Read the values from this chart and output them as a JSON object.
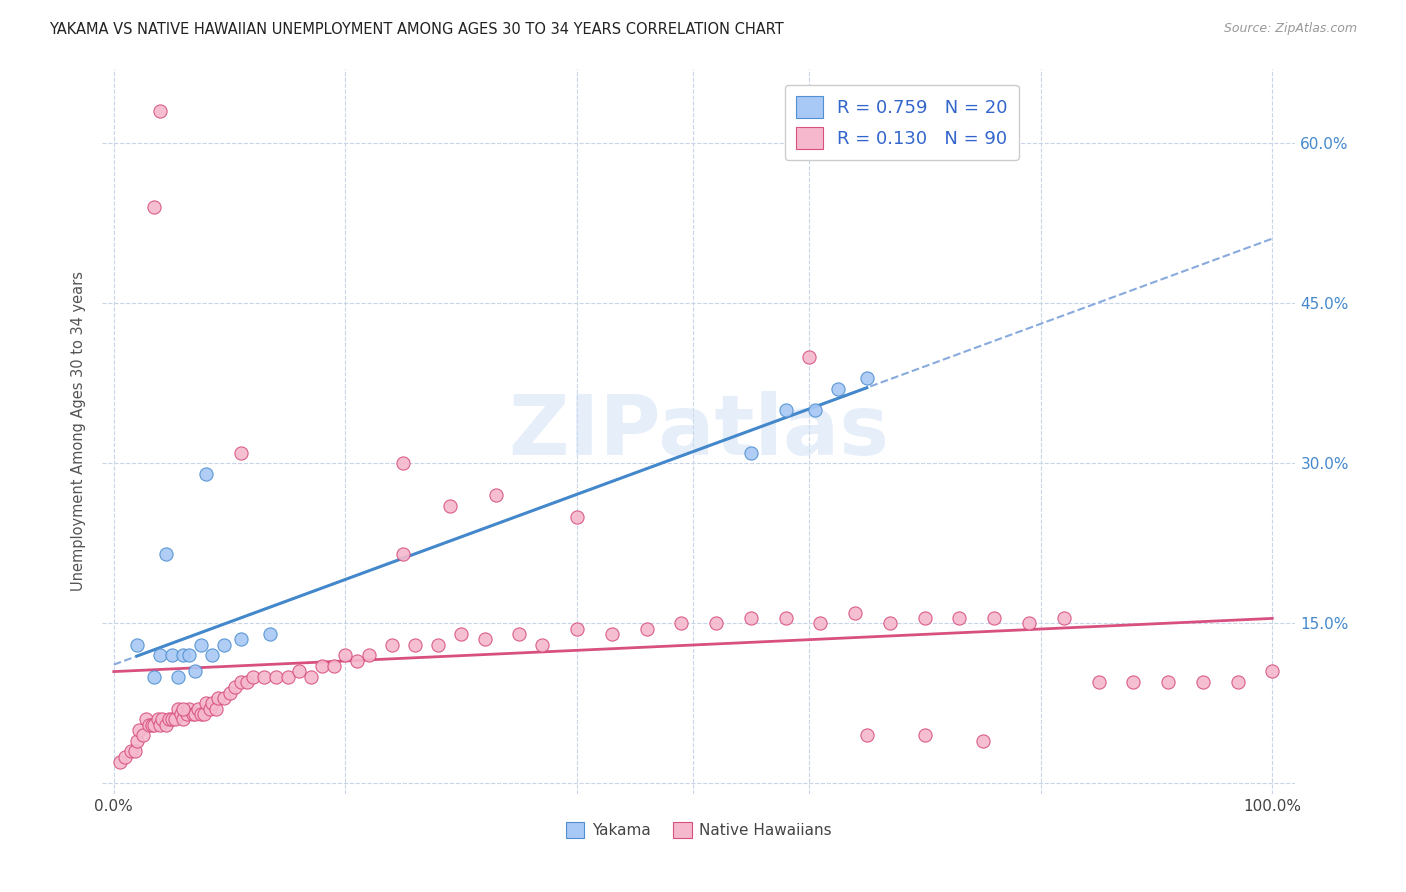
{
  "title": "YAKAMA VS NATIVE HAWAIIAN UNEMPLOYMENT AMONG AGES 30 TO 34 YEARS CORRELATION CHART",
  "source": "Source: ZipAtlas.com",
  "ylabel": "Unemployment Among Ages 30 to 34 years",
  "xlim": [
    -0.01,
    1.02
  ],
  "ylim": [
    -0.01,
    0.67
  ],
  "y_tick_vals": [
    0.0,
    0.15,
    0.3,
    0.45,
    0.6
  ],
  "y_tick_labels": [
    "",
    "15.0%",
    "30.0%",
    "45.0%",
    "60.0%"
  ],
  "x_tick_labels_show": [
    "0.0%",
    "100.0%"
  ],
  "x_tick_positions_show": [
    0.0,
    1.0
  ],
  "yakama_color_fill": "#a8c8f5",
  "yakama_color_edge": "#5090d0",
  "native_color_fill": "#f5b8cc",
  "native_color_edge": "#d85080",
  "trend_yakama_solid_color": "#4488cc",
  "trend_yakama_dashed_color": "#88aadd",
  "trend_native_color": "#d85080",
  "grid_color": "#c8d4e8",
  "background_color": "#ffffff",
  "right_axis_color": "#4488cc",
  "legend_R_yakama": "R = 0.759",
  "legend_N_yakama": "N = 20",
  "legend_R_native": "R = 0.130",
  "legend_N_native": "N = 90",
  "watermark": "ZIPatlas",
  "watermark_color": "#ccdff5",
  "legend_text_color": "#3366cc",
  "legend_label_color": "#333333",
  "yakama_x": [
    0.02,
    0.035,
    0.04,
    0.045,
    0.05,
    0.055,
    0.06,
    0.065,
    0.07,
    0.075,
    0.08,
    0.085,
    0.095,
    0.11,
    0.135,
    0.55,
    0.58,
    0.605,
    0.625,
    0.65
  ],
  "yakama_y": [
    0.13,
    0.1,
    0.12,
    0.215,
    0.12,
    0.1,
    0.12,
    0.12,
    0.105,
    0.13,
    0.29,
    0.12,
    0.13,
    0.135,
    0.14,
    0.31,
    0.35,
    0.35,
    0.37,
    0.38
  ],
  "native_hawaiian_x": [
    0.005,
    0.01,
    0.015,
    0.018,
    0.02,
    0.022,
    0.025,
    0.028,
    0.03,
    0.033,
    0.035,
    0.038,
    0.04,
    0.042,
    0.045,
    0.048,
    0.05,
    0.053,
    0.055,
    0.058,
    0.06,
    0.063,
    0.065,
    0.068,
    0.07,
    0.073,
    0.075,
    0.078,
    0.08,
    0.083,
    0.085,
    0.088,
    0.09,
    0.095,
    0.1,
    0.105,
    0.11,
    0.115,
    0.12,
    0.13,
    0.14,
    0.15,
    0.16,
    0.17,
    0.18,
    0.19,
    0.2,
    0.21,
    0.22,
    0.24,
    0.26,
    0.28,
    0.3,
    0.32,
    0.35,
    0.37,
    0.4,
    0.43,
    0.46,
    0.49,
    0.52,
    0.55,
    0.58,
    0.61,
    0.64,
    0.67,
    0.7,
    0.73,
    0.76,
    0.79,
    0.82,
    0.85,
    0.88,
    0.91,
    0.94,
    0.97,
    1.0,
    0.04,
    0.035,
    0.06,
    0.11,
    0.25,
    0.29,
    0.33,
    0.4,
    0.25,
    0.6,
    0.65,
    0.7,
    0.75
  ],
  "native_hawaiian_y": [
    0.02,
    0.025,
    0.03,
    0.03,
    0.04,
    0.05,
    0.045,
    0.06,
    0.055,
    0.055,
    0.055,
    0.06,
    0.055,
    0.06,
    0.055,
    0.06,
    0.06,
    0.06,
    0.07,
    0.065,
    0.06,
    0.065,
    0.07,
    0.065,
    0.065,
    0.07,
    0.065,
    0.065,
    0.075,
    0.07,
    0.075,
    0.07,
    0.08,
    0.08,
    0.085,
    0.09,
    0.095,
    0.095,
    0.1,
    0.1,
    0.1,
    0.1,
    0.105,
    0.1,
    0.11,
    0.11,
    0.12,
    0.115,
    0.12,
    0.13,
    0.13,
    0.13,
    0.14,
    0.135,
    0.14,
    0.13,
    0.145,
    0.14,
    0.145,
    0.15,
    0.15,
    0.155,
    0.155,
    0.15,
    0.16,
    0.15,
    0.155,
    0.155,
    0.155,
    0.15,
    0.155,
    0.095,
    0.095,
    0.095,
    0.095,
    0.095,
    0.105,
    0.63,
    0.54,
    0.07,
    0.31,
    0.215,
    0.26,
    0.27,
    0.25,
    0.3,
    0.4,
    0.045,
    0.045,
    0.04
  ]
}
